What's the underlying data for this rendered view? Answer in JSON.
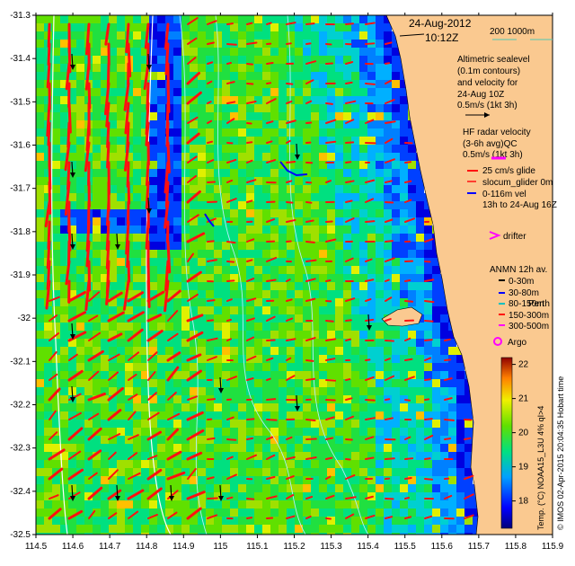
{
  "header": {
    "date": "24-Aug-2012",
    "time": "10:12Z",
    "scale_label": "200  1000m"
  },
  "legend": {
    "altimetry": [
      "Altimetric sealevel",
      "(0.1m contours)",
      "and velocity for",
      "24-Aug 10Z",
      "0.5m/s (1kt 3h)"
    ],
    "radar": [
      "HF radar velocity",
      "(3-6h avg)QC",
      "0.5m/s (1kt 3h)"
    ],
    "glider": [
      "25 cm/s glide",
      "slocum_glider 0m",
      "0-116m vel",
      "13h to 24-Aug 16Z"
    ],
    "drifter": "drifter",
    "anmn_title": "ANMN 12h av.",
    "anmn_items": [
      "0-30m",
      "30-80m",
      "80-150m",
      "150-300m",
      "300-500m"
    ],
    "perth": "Perth",
    "argo": "Argo"
  },
  "colors": {
    "land": "#fac990",
    "radar_arrow": "#ff1010",
    "alt_arrow": "#000000",
    "glider_arrow": "#0000ff",
    "drifter": "#ff00ff",
    "argo": "#ff00ff",
    "contour": "#b0f0ff",
    "isobath": "#ffffff",
    "scale_line": "#50c8b4"
  },
  "chart_data": {
    "type": "heatmap",
    "x_ticks": [
      "114.5",
      "114.6",
      "114.7",
      "114.8",
      "114.9",
      "115",
      "115.1",
      "115.2",
      "115.3",
      "115.4",
      "115.5",
      "115.6",
      "115.7",
      "115.8",
      "115.9"
    ],
    "y_ticks": [
      "-31.3",
      "-31.4",
      "-31.5",
      "-31.6",
      "-31.7",
      "-31.8",
      "-31.9",
      "-32",
      "-32.1",
      "-32.2",
      "-32.3",
      "-32.4",
      "-32.5"
    ],
    "xlim": [
      114.5,
      115.9
    ],
    "ylim": [
      -32.5,
      -31.3
    ],
    "colorbar": {
      "label": "Temp. (°C) NOAA15_L3U 4% qI>4",
      "ticks": [
        "22",
        "21",
        "20",
        "19",
        "18"
      ],
      "range": [
        17.2,
        22.2
      ]
    },
    "credit": "© IMOS 02-Apr-2015 20:04:35 Hobart time"
  }
}
